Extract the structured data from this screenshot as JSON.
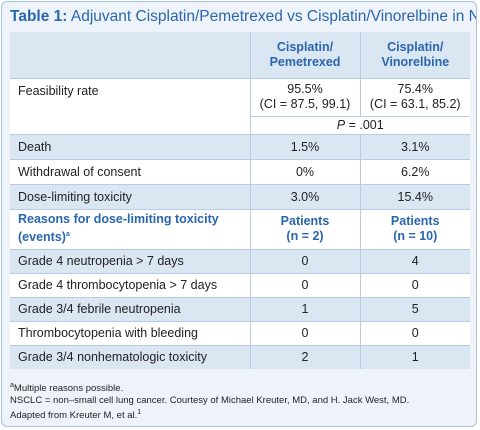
{
  "title": {
    "label": "Table 1:",
    "text": "Adjuvant Cisplatin/Pemetrexed vs Cisplatin/Vinorelbine in NSCLC"
  },
  "columns": {
    "col1": [
      "Cisplatin/",
      "Pemetrexed"
    ],
    "col2": [
      "Cisplatin/",
      "Vinorelbine"
    ]
  },
  "feasibility": {
    "label": "Feasibility rate",
    "col1": [
      "95.5%",
      "(CI = 87.5, 99.1)"
    ],
    "col2": [
      "75.4%",
      "(CI = 63.1, 85.2)"
    ],
    "p_label": "P",
    "p_value": " = .001"
  },
  "rows_top": [
    {
      "label": "Death",
      "col1": "1.5%",
      "col2": "3.1%"
    },
    {
      "label": "Withdrawal of consent",
      "col1": "0%",
      "col2": "6.2%"
    },
    {
      "label": "Dose-limiting toxicity",
      "col1": "3.0%",
      "col2": "15.4%"
    }
  ],
  "reasons_header": {
    "label": [
      "Reasons for dose-limiting toxicity",
      "(events)"
    ],
    "label_sup": "a",
    "col1": [
      "Patients",
      "(n = 2)"
    ],
    "col2": [
      "Patients",
      "(n = 10)"
    ]
  },
  "rows_bottom": [
    {
      "label": "Grade 4 neutropenia > 7 days",
      "col1": "0",
      "col2": "4"
    },
    {
      "label": "Grade 4 thrombocytopenia > 7 days",
      "col1": "0",
      "col2": "0"
    },
    {
      "label": "Grade 3/4 febrile neutropenia",
      "col1": "1",
      "col2": "5"
    },
    {
      "label": "Thrombocytopenia with bleeding",
      "col1": "0",
      "col2": "0"
    },
    {
      "label": "Grade 3/4 nonhematologic toxicity",
      "col1": "2",
      "col2": "1"
    }
  ],
  "footnotes": {
    "note_a_sup": "a",
    "note_a": "Multiple reasons possible.",
    "abbrev": "NSCLC = non–small cell lung cancer. Courtesy of Michael Kreuter, MD, and H. Jack West, MD.",
    "adapted": "Adapted from Kreuter M, et al.",
    "adapted_sup": "1"
  }
}
